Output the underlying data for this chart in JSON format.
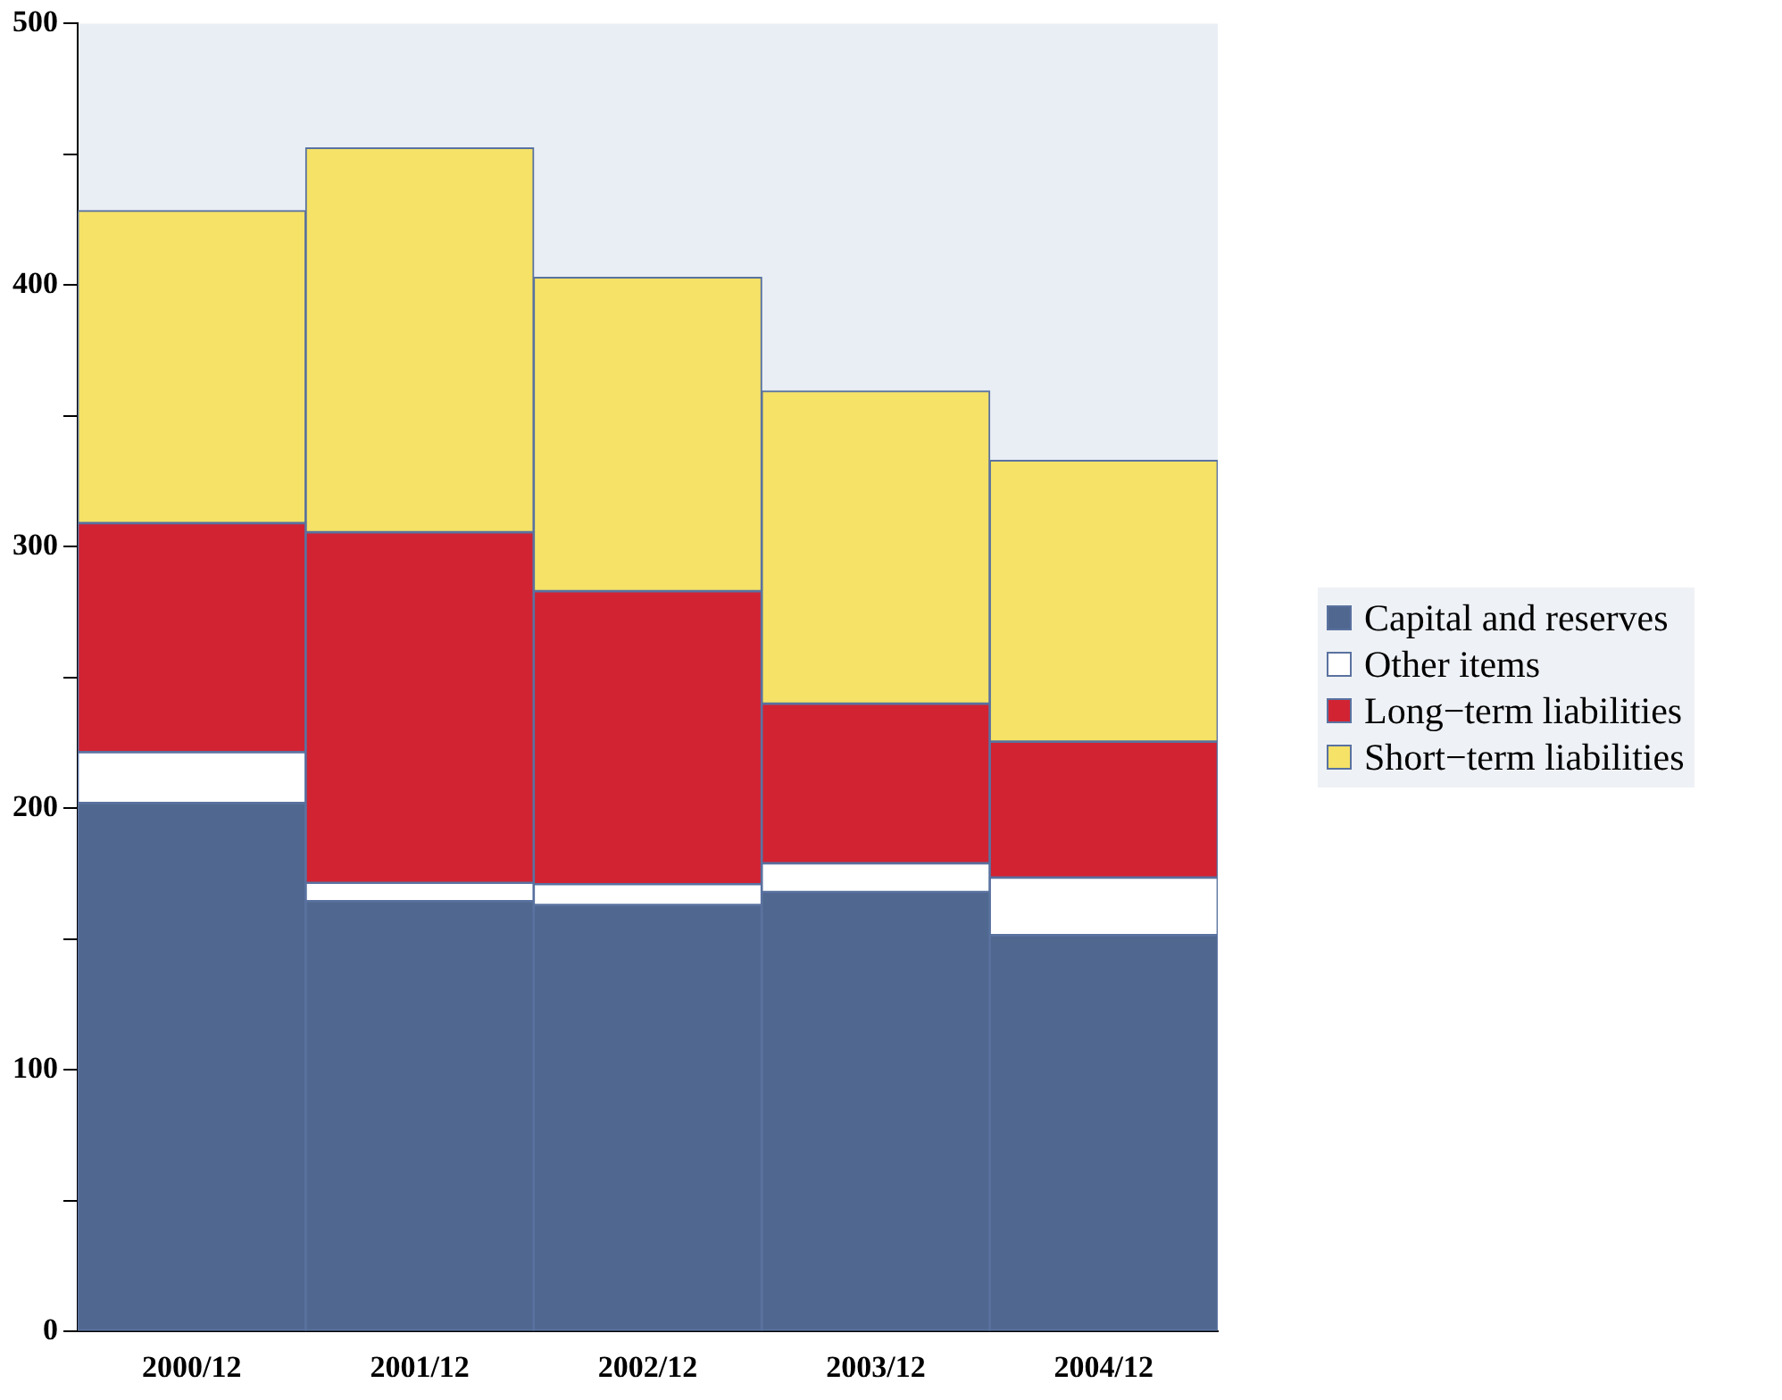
{
  "chart_data": {
    "type": "bar",
    "stacked": true,
    "categories": [
      "2000/12",
      "2001/12",
      "2002/12",
      "2003/12",
      "2004/12"
    ],
    "series": [
      {
        "name": "Capital and reserves",
        "color": "#50688f",
        "values": [
          202,
          164.5,
          163,
          168,
          151.5
        ]
      },
      {
        "name": "Other items",
        "color": "#ffffff",
        "values": [
          19.5,
          7,
          8,
          11,
          22
        ]
      },
      {
        "name": "Long−term liabilities",
        "color": "#d22333",
        "values": [
          87.5,
          134,
          112,
          61,
          52
        ]
      },
      {
        "name": "Short−term liabilities",
        "color": "#f5e267",
        "values": [
          119.5,
          147,
          120,
          119.5,
          107.5
        ]
      }
    ],
    "ylim": [
      0,
      500
    ],
    "yticks": [
      0,
      {
        "value": 50,
        "label": null
      },
      100,
      {
        "value": 150,
        "label": null
      },
      200,
      {
        "value": 250,
        "label": null
      },
      300,
      {
        "value": 350,
        "label": null
      },
      400,
      {
        "value": 450,
        "label": null
      },
      500
    ],
    "grid": false,
    "legend": "right"
  }
}
